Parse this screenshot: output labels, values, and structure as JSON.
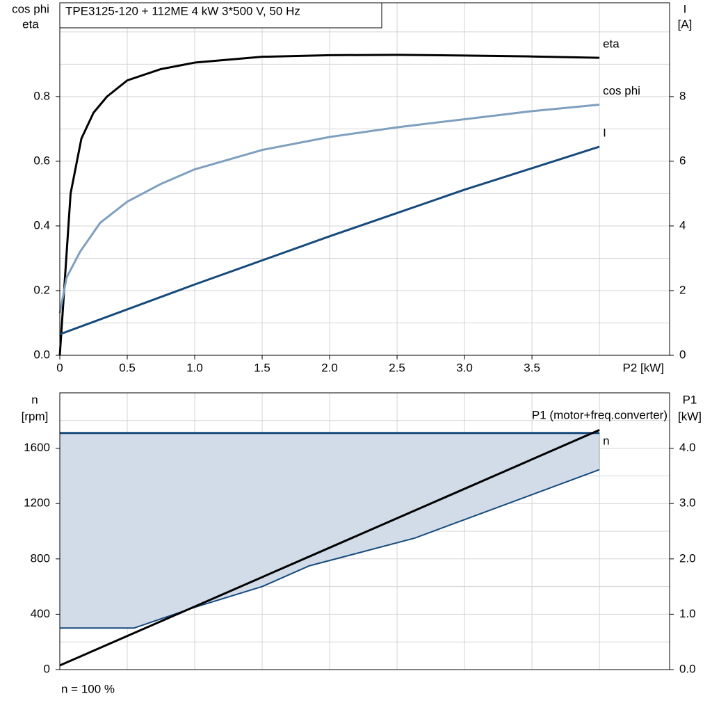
{
  "chart_data": [
    {
      "type": "line",
      "title": "TPE3125-120 + 112ME   4 kW   3*500 V, 50 Hz",
      "ylabel": [
        "cos phi",
        "eta"
      ],
      "y2label": [
        "I",
        "[A]"
      ],
      "xlabel": "P2 [kW]",
      "xlim": [
        0,
        4.52
      ],
      "xticks": [
        0,
        {
          "value": 0.5,
          "label": "0.5"
        },
        {
          "value": 1.0,
          "label": "1.0"
        },
        {
          "value": 1.5,
          "label": "1.5"
        },
        {
          "value": 2.0,
          "label": "2.0"
        },
        {
          "value": 2.5,
          "label": "2.5"
        },
        {
          "value": 3.0,
          "label": "3.0"
        },
        {
          "value": 3.5,
          "label": "3.5"
        }
      ],
      "xgrid": [
        4.0
      ],
      "ylim": [
        0,
        1.09
      ],
      "yticks": [
        {
          "value": 0,
          "label": "0.0"
        },
        {
          "value": 0.2,
          "label": "0.2"
        },
        {
          "value": 0.4,
          "label": "0.4"
        },
        {
          "value": 0.6,
          "label": "0.6"
        },
        {
          "value": 0.8,
          "label": "0.8"
        }
      ],
      "ygrid": [
        0.1,
        0.3,
        0.5,
        0.7,
        0.9,
        1.0
      ],
      "y2lim": [
        0,
        10.9
      ],
      "y2ticks": [
        0,
        2,
        4,
        6,
        8
      ],
      "grid": true,
      "series": [
        {
          "name": "eta",
          "color": "#000000",
          "x": [
            0,
            0.08,
            0.16,
            0.25,
            0.35,
            0.5,
            0.75,
            1.0,
            1.5,
            2.0,
            2.5,
            3.0,
            3.5,
            4.0
          ],
          "values": [
            0,
            0.5,
            0.67,
            0.75,
            0.8,
            0.85,
            0.885,
            0.905,
            0.923,
            0.928,
            0.929,
            0.927,
            0.924,
            0.92
          ]
        },
        {
          "name": "cos phi",
          "color": "#7f9fbf",
          "x": [
            0,
            0.05,
            0.15,
            0.3,
            0.5,
            0.75,
            1.0,
            1.5,
            2.0,
            2.5,
            3.0,
            3.5,
            4.0
          ],
          "values": [
            0.13,
            0.24,
            0.32,
            0.41,
            0.475,
            0.53,
            0.575,
            0.635,
            0.675,
            0.705,
            0.73,
            0.755,
            0.775
          ]
        },
        {
          "name": "I",
          "color": "#174a7c",
          "axis": "y2",
          "x": [
            0,
            1.0,
            2.0,
            3.0,
            4.0
          ],
          "values": [
            0.65,
            2.19,
            3.68,
            5.12,
            6.45
          ]
        }
      ]
    },
    {
      "type": "line",
      "ylabel": [
        "n",
        "[rpm]"
      ],
      "y2label": [
        "P1",
        "[kW]"
      ],
      "note": "n = 100 %",
      "xlim": [
        0,
        4.52
      ],
      "xgrid": [
        0.5,
        1.0,
        1.5,
        2.0,
        2.5,
        3.0,
        3.5,
        4.0
      ],
      "ylim": [
        0,
        2000
      ],
      "yticks": [
        0,
        400,
        800,
        1200,
        1600
      ],
      "ygrid": [
        200,
        600,
        1000,
        1400,
        1800
      ],
      "y2lim": [
        0,
        5.0
      ],
      "y2ticks": [
        {
          "value": 0,
          "label": "0.0"
        },
        {
          "value": 1.0,
          "label": "1.0"
        },
        {
          "value": 2.0,
          "label": "2.0"
        },
        {
          "value": 3.0,
          "label": "3.0"
        },
        {
          "value": 4.0,
          "label": "4.0"
        }
      ],
      "grid": true,
      "series": [
        {
          "name": "n",
          "color": "#174a7c",
          "fill": "#d1dce8",
          "x": [
            0,
            0.55,
            1.0,
            1.5,
            1.85,
            2.63,
            4.0
          ],
          "values": [
            1710,
            1710,
            1710,
            1710,
            1710,
            1710,
            1710
          ],
          "lower": [
            300,
            300,
            450,
            600,
            750,
            950,
            1445
          ]
        },
        {
          "name": "P1 (motor+freq.converter)",
          "color": "#000000",
          "axis": "y2",
          "x": [
            0,
            4.0
          ],
          "values": [
            0.075,
            4.33
          ]
        }
      ]
    }
  ]
}
